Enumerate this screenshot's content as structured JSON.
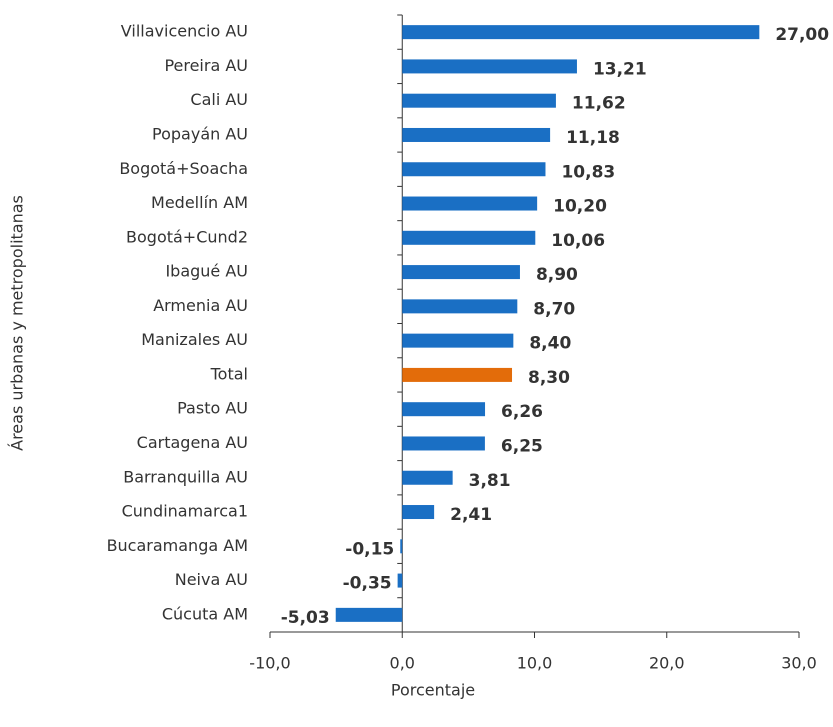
{
  "chart_data": {
    "type": "barh",
    "xlabel": "Porcentaje",
    "ylabel": "Áreas urbanas y metropolitanas",
    "categories": [
      "Villavicencio AU",
      "Pereira AU",
      "Cali AU",
      "Popayán AU",
      "Bogotá+Soacha",
      "Medellín AM",
      "Bogotá+Cund2",
      "Ibagué AU",
      "Armenia AU",
      "Manizales AU",
      "Total",
      "Pasto AU",
      "Cartagena AU",
      "Barranquilla AU",
      "Cundinamarca1",
      "Bucaramanga AM",
      "Neiva AU",
      "Cúcuta AM"
    ],
    "values": [
      27.0,
      13.21,
      11.62,
      11.18,
      10.83,
      10.2,
      10.06,
      8.9,
      8.7,
      8.4,
      8.3,
      6.26,
      6.25,
      3.81,
      2.41,
      -0.15,
      -0.35,
      -5.03
    ],
    "value_labels": [
      "27,00",
      "13,21",
      "11,62",
      "11,18",
      "10,83",
      "10,20",
      "10,06",
      "8,90",
      "8,70",
      "8,40",
      "8,30",
      "6,26",
      "6,25",
      "3,81",
      "2,41",
      "-0,15",
      "-0,35",
      "-5,03"
    ],
    "colors": [
      "#1a6fc4",
      "#1a6fc4",
      "#1a6fc4",
      "#1a6fc4",
      "#1a6fc4",
      "#1a6fc4",
      "#1a6fc4",
      "#1a6fc4",
      "#1a6fc4",
      "#1a6fc4",
      "#e36c0a",
      "#1a6fc4",
      "#1a6fc4",
      "#1a6fc4",
      "#1a6fc4",
      "#1a6fc4",
      "#1a6fc4",
      "#1a6fc4"
    ],
    "xlim": [
      -10,
      30
    ],
    "xticks": [
      {
        "value": -10,
        "label": "-10,0"
      },
      {
        "value": 0,
        "label": "0,0"
      },
      {
        "value": 10,
        "label": "10,0"
      },
      {
        "value": 20,
        "label": "20,0"
      },
      {
        "value": 30,
        "label": "30,0"
      }
    ]
  }
}
